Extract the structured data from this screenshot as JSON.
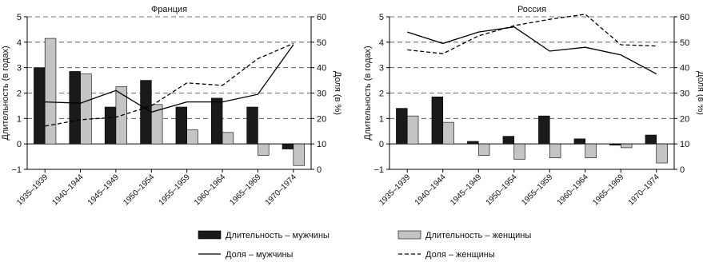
{
  "chart_data": [
    {
      "type": "bar",
      "title": "Франция",
      "ylabel": "Длительность (в годах)",
      "y2label": "Доля (в %)",
      "ylim": [
        -1,
        5
      ],
      "y2lim": [
        0,
        60
      ],
      "yticks": [
        -1,
        0,
        1,
        2,
        3,
        4,
        5
      ],
      "y2ticks": [
        0,
        10,
        20,
        30,
        40,
        50,
        60
      ],
      "grid": "horizontal dashed",
      "categories": [
        "1935–1939",
        "1940–1944",
        "1945–1949",
        "1950–1954",
        "1955–1959",
        "1960–1964",
        "1965–1969",
        "1970–1974"
      ],
      "series": [
        {
          "name": "Длительность – мужчины",
          "kind": "bar",
          "axis": "left",
          "color": "#1a1a1a",
          "values": [
            3.0,
            2.85,
            1.45,
            2.5,
            1.45,
            1.8,
            1.45,
            -0.2
          ]
        },
        {
          "name": "Длительность – женщины",
          "kind": "bar",
          "axis": "left",
          "color": "#c4c4c4",
          "values": [
            4.15,
            2.75,
            2.25,
            1.55,
            0.55,
            0.45,
            -0.45,
            -0.85
          ]
        },
        {
          "name": "Доля – мужчины",
          "kind": "line",
          "style": "solid",
          "axis": "right",
          "values": [
            26.5,
            26.0,
            31.0,
            22.5,
            26.5,
            26.5,
            29.5,
            49.0
          ]
        },
        {
          "name": "Доля – женщины",
          "kind": "line",
          "style": "dashed",
          "axis": "right",
          "values": [
            17.0,
            19.5,
            20.5,
            25.0,
            34.0,
            33.0,
            43.5,
            49.5
          ]
        }
      ]
    },
    {
      "type": "bar",
      "title": "Россия",
      "ylabel": "Длительность (в годах)",
      "y2label": "Доля (в %)",
      "ylim": [
        -1,
        5
      ],
      "y2lim": [
        0,
        60
      ],
      "yticks": [
        -1,
        0,
        1,
        2,
        3,
        4,
        5
      ],
      "y2ticks": [
        0,
        10,
        20,
        30,
        40,
        50,
        60
      ],
      "grid": "horizontal dashed",
      "categories": [
        "1935–1939",
        "1940–1944",
        "1945–1949",
        "1950–1954",
        "1955–1959",
        "1960–1964",
        "1965–1969",
        "1970–1974"
      ],
      "series": [
        {
          "name": "Длительность – мужчины",
          "kind": "bar",
          "axis": "left",
          "color": "#1a1a1a",
          "values": [
            1.4,
            1.85,
            0.1,
            0.3,
            1.1,
            0.2,
            -0.05,
            0.35
          ]
        },
        {
          "name": "Длительность – женщины",
          "kind": "bar",
          "axis": "left",
          "color": "#c4c4c4",
          "values": [
            1.1,
            0.85,
            -0.45,
            -0.6,
            -0.55,
            -0.55,
            -0.15,
            -0.75
          ]
        },
        {
          "name": "Доля – мужчины",
          "kind": "line",
          "style": "solid",
          "axis": "right",
          "values": [
            54.0,
            49.5,
            54.0,
            56.0,
            46.5,
            48.0,
            45.0,
            37.5
          ]
        },
        {
          "name": "Доля – женщины",
          "kind": "line",
          "style": "dashed",
          "axis": "right",
          "values": [
            47.0,
            45.5,
            52.5,
            56.5,
            59.0,
            61.0,
            49.0,
            48.5
          ]
        }
      ]
    }
  ],
  "legend": {
    "placement": "bottom",
    "items": [
      {
        "key": "bar_men",
        "label": "Длительность – мужчины",
        "color": "#1a1a1a"
      },
      {
        "key": "bar_women",
        "label": "Длительность – женщины",
        "color": "#c4c4c4"
      },
      {
        "key": "line_men",
        "label": "Доля – мужчины",
        "style": "solid"
      },
      {
        "key": "line_women",
        "label": "Доля – женщины",
        "style": "dashed"
      }
    ]
  }
}
